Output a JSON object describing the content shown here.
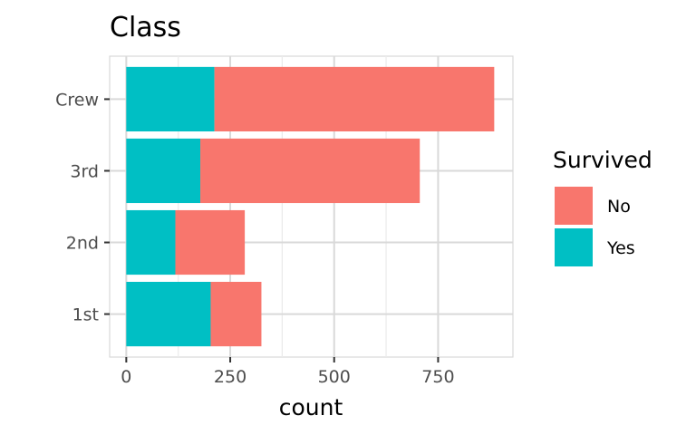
{
  "chart_data": {
    "type": "bar",
    "orientation": "horizontal",
    "stacked": true,
    "title": "Class",
    "xlabel": "count",
    "ylabel": "",
    "categories": [
      "1st",
      "2nd",
      "3rd",
      "Crew"
    ],
    "series": [
      {
        "name": "No",
        "color": "#F8766D",
        "values": [
          122,
          167,
          528,
          673
        ]
      },
      {
        "name": "Yes",
        "color": "#00BFC4",
        "values": [
          203,
          118,
          178,
          212
        ]
      }
    ],
    "xlim": [
      -40,
      930
    ],
    "x_ticks": [
      0,
      250,
      500,
      750
    ],
    "grid": true,
    "legend": {
      "title": "Survived",
      "position": "right"
    }
  }
}
